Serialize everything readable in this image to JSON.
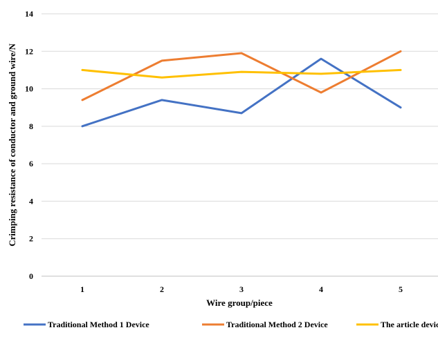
{
  "chart_data": {
    "type": "line",
    "title": "",
    "xlabel": "Wire group/piece",
    "ylabel": "Crimping resistance of conductor and ground wire/N",
    "x": [
      "1",
      "2",
      "3",
      "4",
      "5"
    ],
    "ylim": [
      0,
      14
    ],
    "yticks": [
      "0",
      "2",
      "4",
      "6",
      "8",
      "10",
      "12",
      "14"
    ],
    "grid": true,
    "legend_position": "bottom",
    "series": [
      {
        "name": "Traditional Method 1 Device",
        "color": "#4472C4",
        "values": [
          8.0,
          9.4,
          8.7,
          11.6,
          9.0
        ]
      },
      {
        "name": "Traditional Method 2 Device",
        "color": "#ED7D31",
        "values": [
          9.4,
          11.5,
          11.9,
          9.8,
          12.0
        ]
      },
      {
        "name": "The article device",
        "color": "#FFC000",
        "values": [
          11.0,
          10.6,
          10.9,
          10.8,
          11.0
        ]
      }
    ]
  }
}
